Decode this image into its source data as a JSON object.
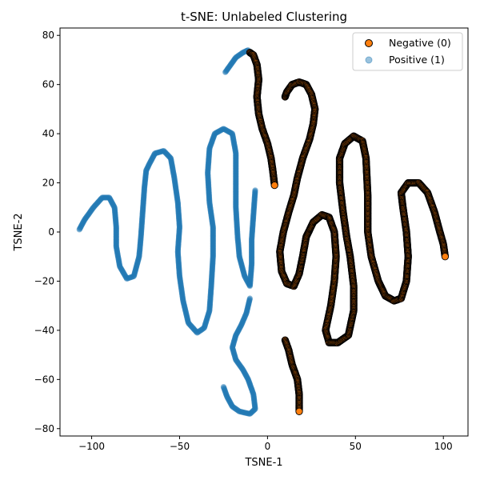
{
  "chart_data": {
    "type": "scatter",
    "title": "t-SNE: Unlabeled Clustering",
    "xlabel": "TSNE-1",
    "ylabel": "TSNE-2",
    "xlim": [
      -118,
      114
    ],
    "ylim": [
      -83,
      83
    ],
    "xticks": [
      -100,
      -50,
      0,
      50,
      100
    ],
    "yticks": [
      -80,
      -60,
      -40,
      -20,
      0,
      20,
      40,
      60,
      80
    ],
    "xtick_labels": [
      "−100",
      "−50",
      "0",
      "50",
      "100"
    ],
    "ytick_labels": [
      "−80",
      "−60",
      "−40",
      "−20",
      "0",
      "20",
      "40",
      "60",
      "80"
    ],
    "grid": false,
    "legend_position": "top-right",
    "series": [
      {
        "name": "Negative (0)",
        "color": "#ff7f0e",
        "edge_color": "#000000",
        "marker": "circle",
        "curves": [
          [
            [
              -10,
              73
            ],
            [
              -8,
              72
            ],
            [
              -6,
              68
            ],
            [
              -5,
              62
            ],
            [
              -6,
              55
            ],
            [
              -5,
              48
            ],
            [
              -3,
              42
            ],
            [
              0,
              36
            ],
            [
              2,
              30
            ],
            [
              3,
              25
            ],
            [
              4,
              19
            ]
          ],
          [
            [
              10,
              55
            ],
            [
              11,
              57
            ],
            [
              14,
              60
            ],
            [
              18,
              61
            ],
            [
              22,
              60
            ],
            [
              25,
              56
            ],
            [
              27,
              50
            ],
            [
              26,
              44
            ],
            [
              24,
              38
            ],
            [
              20,
              30
            ],
            [
              17,
              22
            ],
            [
              15,
              15
            ],
            [
              12,
              8
            ],
            [
              9,
              0
            ],
            [
              7,
              -8
            ],
            [
              8,
              -16
            ],
            [
              11,
              -21
            ],
            [
              15,
              -22
            ],
            [
              18,
              -17
            ],
            [
              20,
              -10
            ],
            [
              22,
              -2
            ],
            [
              26,
              4
            ],
            [
              31,
              7
            ],
            [
              35,
              6
            ],
            [
              38,
              0
            ],
            [
              39,
              -10
            ],
            [
              38,
              -20
            ],
            [
              36,
              -30
            ],
            [
              33,
              -40
            ],
            [
              35,
              -45
            ],
            [
              40,
              -45
            ],
            [
              46,
              -42
            ],
            [
              49,
              -32
            ],
            [
              49,
              -22
            ],
            [
              47,
              -10
            ],
            [
              45,
              -2
            ],
            [
              43,
              8
            ],
            [
              41,
              20
            ],
            [
              41,
              30
            ],
            [
              44,
              36
            ],
            [
              49,
              39
            ],
            [
              54,
              37
            ],
            [
              56,
              30
            ],
            [
              57,
              15
            ],
            [
              57,
              0
            ],
            [
              59,
              -10
            ],
            [
              63,
              -20
            ],
            [
              67,
              -26
            ],
            [
              72,
              -28
            ],
            [
              76,
              -27
            ],
            [
              79,
              -20
            ],
            [
              80,
              -10
            ],
            [
              79,
              0
            ],
            [
              77,
              10
            ],
            [
              76,
              16
            ],
            [
              80,
              20
            ],
            [
              86,
              20
            ],
            [
              91,
              16
            ],
            [
              95,
              8
            ],
            [
              98,
              0
            ],
            [
              100,
              -5
            ],
            [
              101,
              -10
            ]
          ],
          [
            [
              10,
              -44
            ],
            [
              12,
              -48
            ],
            [
              14,
              -54
            ],
            [
              17,
              -60
            ],
            [
              18,
              -66
            ],
            [
              18,
              -73
            ]
          ]
        ]
      },
      {
        "name": "Positive (1)",
        "color": "#1f77b4",
        "edge_color": "#1f77b4",
        "marker": "circle",
        "curves": [
          [
            [
              -107,
              1
            ],
            [
              -104,
              5
            ],
            [
              -99,
              10
            ],
            [
              -94,
              14
            ],
            [
              -90,
              14
            ],
            [
              -87,
              10
            ],
            [
              -86,
              2
            ],
            [
              -86,
              -6
            ],
            [
              -84,
              -14
            ],
            [
              -80,
              -19
            ],
            [
              -76,
              -18
            ],
            [
              -73,
              -10
            ],
            [
              -72,
              -2
            ],
            [
              -71,
              8
            ],
            [
              -70,
              18
            ],
            [
              -69,
              25
            ],
            [
              -67,
              28
            ],
            [
              -64,
              32
            ],
            [
              -59,
              33
            ],
            [
              -55,
              30
            ],
            [
              -53,
              22
            ],
            [
              -51,
              12
            ],
            [
              -50,
              2
            ],
            [
              -51,
              -8
            ],
            [
              -50,
              -18
            ],
            [
              -48,
              -28
            ],
            [
              -45,
              -37
            ],
            [
              -40,
              -41
            ],
            [
              -36,
              -39
            ],
            [
              -33,
              -32
            ],
            [
              -32,
              -22
            ],
            [
              -31,
              -10
            ],
            [
              -31,
              2
            ],
            [
              -33,
              12
            ],
            [
              -34,
              24
            ],
            [
              -33,
              34
            ],
            [
              -30,
              40
            ],
            [
              -25,
              42
            ],
            [
              -20,
              40
            ],
            [
              -18,
              32
            ],
            [
              -18,
              22
            ],
            [
              -18,
              10
            ],
            [
              -17,
              -2
            ],
            [
              -16,
              -10
            ],
            [
              -13,
              -18
            ],
            [
              -10,
              -22
            ],
            [
              -9,
              -13
            ],
            [
              -9,
              -3
            ],
            [
              -8,
              7
            ],
            [
              -7,
              17
            ]
          ],
          [
            [
              -24,
              65
            ],
            [
              -21,
              68
            ],
            [
              -18,
              71
            ],
            [
              -14,
              73
            ],
            [
              -11,
              74
            ]
          ],
          [
            [
              -10,
              -27
            ],
            [
              -12,
              -33
            ],
            [
              -15,
              -38
            ],
            [
              -18,
              -42
            ],
            [
              -20,
              -47
            ],
            [
              -18,
              -52
            ],
            [
              -14,
              -56
            ],
            [
              -11,
              -60
            ],
            [
              -8,
              -66
            ],
            [
              -7,
              -72
            ],
            [
              -10,
              -74
            ],
            [
              -16,
              -73
            ],
            [
              -20,
              -71
            ],
            [
              -23,
              -67
            ],
            [
              -25,
              -63
            ]
          ]
        ]
      }
    ]
  }
}
